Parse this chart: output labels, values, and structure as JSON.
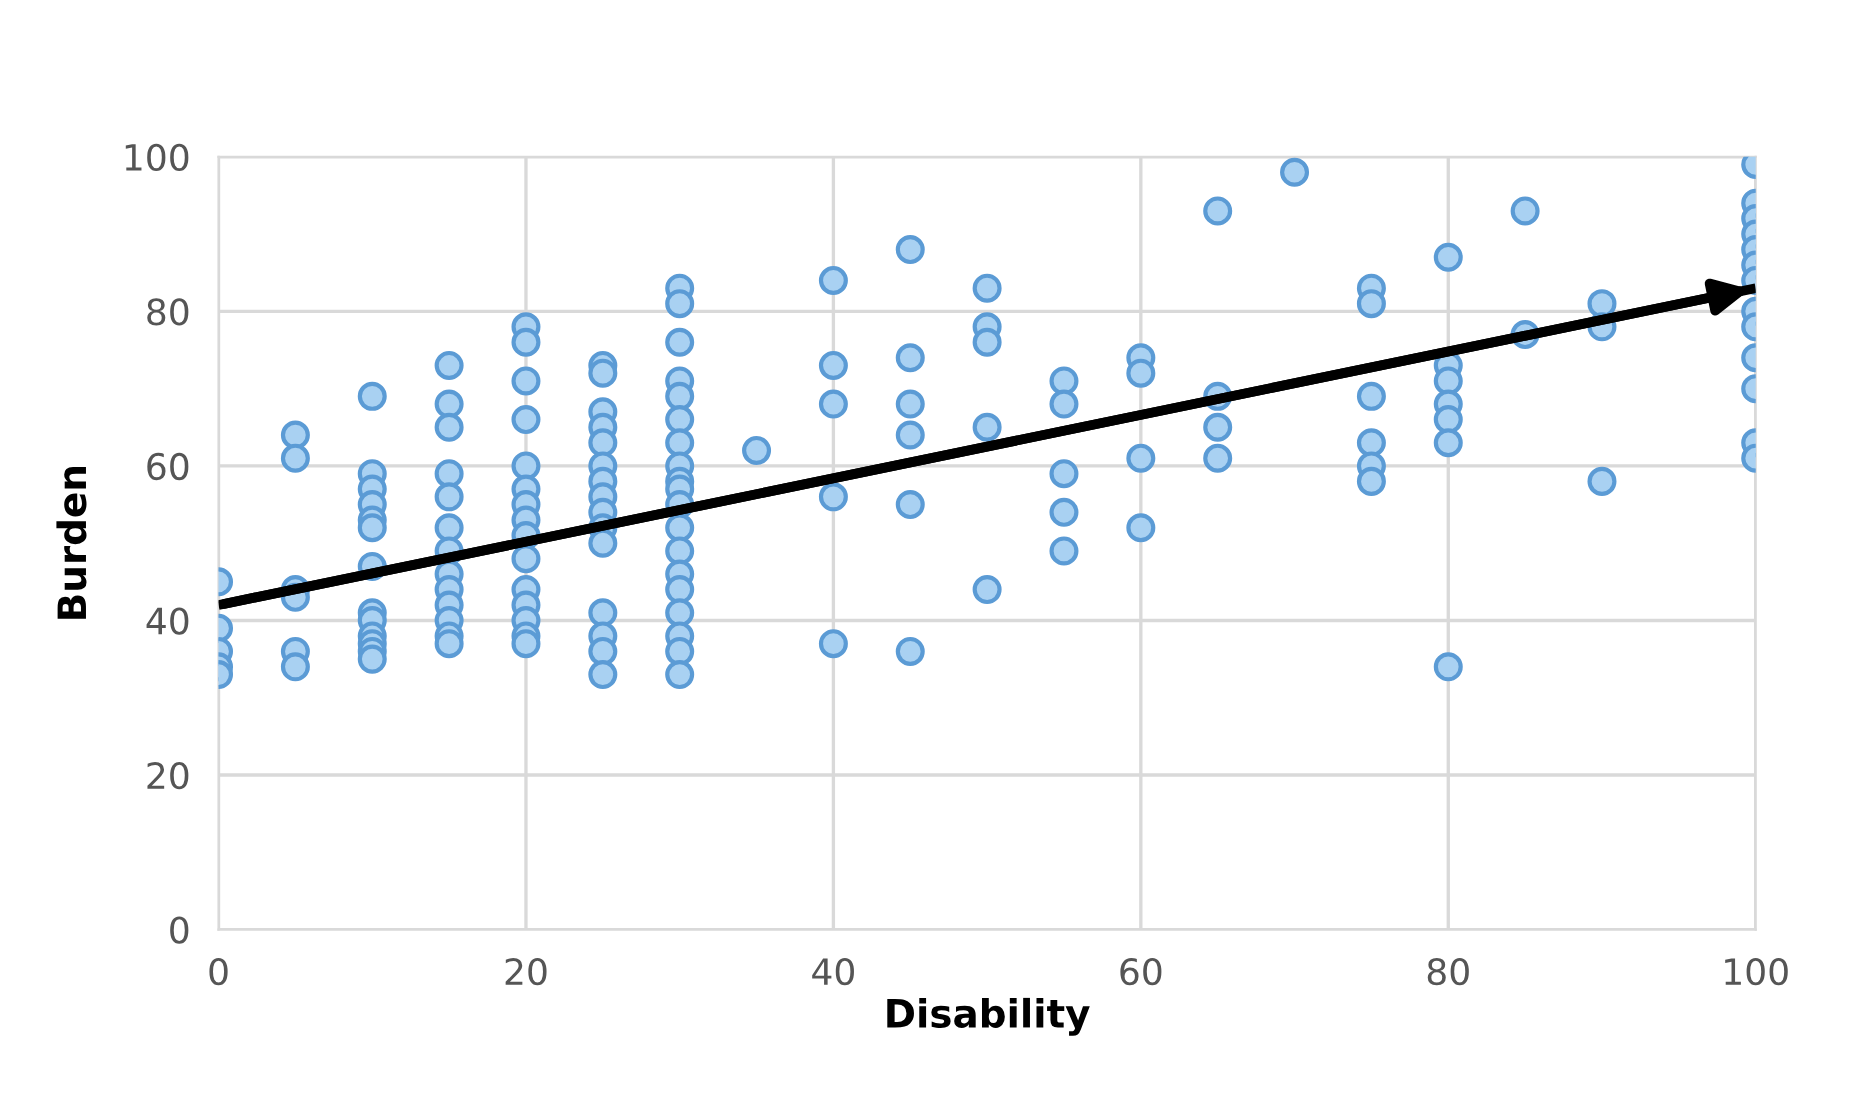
{
  "chart_data": {
    "type": "scatter",
    "xlabel": "Disability",
    "ylabel": "Burden",
    "xlim": [
      0,
      100
    ],
    "xticks": [
      0,
      20,
      40,
      60,
      80,
      100
    ],
    "ylim": [
      0,
      100
    ],
    "yticks": [
      0,
      20,
      40,
      60,
      80,
      100
    ],
    "grid": true,
    "series": [
      {
        "marker": "circle",
        "color": "#a9d1f2",
        "x": [
          0,
          0,
          0,
          0,
          0,
          5,
          5,
          5,
          5,
          5,
          5,
          10,
          10,
          10,
          10,
          10,
          10,
          10,
          10,
          10,
          10,
          10,
          10,
          10,
          15,
          15,
          15,
          15,
          15,
          15,
          15,
          15,
          15,
          15,
          15,
          15,
          15,
          20,
          20,
          20,
          20,
          20,
          20,
          20,
          20,
          20,
          20,
          20,
          20,
          20,
          20,
          20,
          25,
          25,
          25,
          25,
          25,
          25,
          25,
          25,
          25,
          25,
          25,
          25,
          25,
          25,
          25,
          30,
          30,
          30,
          30,
          30,
          30,
          30,
          30,
          30,
          30,
          30,
          30,
          30,
          30,
          30,
          30,
          30,
          30,
          30,
          35,
          40,
          40,
          40,
          40,
          40,
          45,
          45,
          45,
          45,
          45,
          45,
          50,
          50,
          50,
          50,
          50,
          55,
          55,
          55,
          55,
          55,
          60,
          60,
          60,
          60,
          65,
          65,
          65,
          65,
          70,
          75,
          75,
          75,
          75,
          75,
          75,
          80,
          80,
          80,
          80,
          80,
          80,
          80,
          85,
          85,
          90,
          90,
          90,
          100,
          100,
          100,
          100,
          100,
          100,
          100,
          100,
          100,
          100,
          100,
          100,
          100
        ],
        "values": [
          45,
          39,
          36,
          34,
          33,
          64,
          61,
          44,
          43,
          36,
          34,
          69,
          59,
          57,
          55,
          53,
          52,
          47,
          41,
          40,
          38,
          37,
          36,
          35,
          73,
          68,
          65,
          59,
          56,
          52,
          49,
          46,
          44,
          42,
          40,
          38,
          37,
          78,
          76,
          71,
          66,
          60,
          57,
          55,
          53,
          51,
          48,
          44,
          42,
          40,
          38,
          37,
          73,
          72,
          67,
          65,
          63,
          60,
          58,
          56,
          54,
          52,
          50,
          41,
          38,
          36,
          33,
          83,
          81,
          76,
          71,
          69,
          66,
          63,
          60,
          58,
          57,
          55,
          52,
          49,
          46,
          44,
          41,
          38,
          36,
          33,
          62,
          84,
          73,
          68,
          56,
          37,
          88,
          74,
          68,
          64,
          55,
          36,
          83,
          78,
          76,
          65,
          44,
          71,
          68,
          59,
          54,
          49,
          74,
          72,
          61,
          52,
          93,
          69,
          65,
          61,
          98,
          83,
          81,
          69,
          63,
          60,
          58,
          87,
          73,
          71,
          68,
          66,
          63,
          34,
          93,
          77,
          81,
          78,
          58,
          99,
          94,
          92,
          90,
          88,
          86,
          84,
          80,
          78,
          74,
          70,
          63,
          61
        ]
      },
      {
        "type": "line",
        "marker": "none",
        "color": "#000000",
        "x": [
          0,
          100
        ],
        "values": [
          42,
          83
        ]
      }
    ]
  }
}
